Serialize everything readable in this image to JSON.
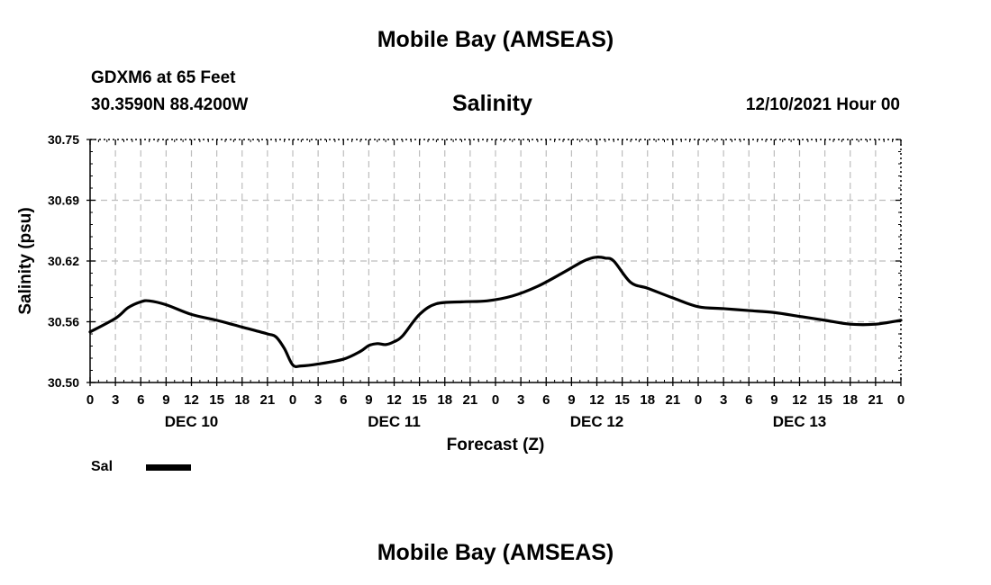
{
  "header": {
    "title": "Mobile Bay (AMSEAS)",
    "station": "GDXM6 at 65 Feet",
    "coords": "30.3590N  88.4200W",
    "variable": "Salinity",
    "datetime": "12/10/2021 Hour 00"
  },
  "footer": {
    "title": "Mobile Bay (AMSEAS)"
  },
  "legend": {
    "label": "Sal",
    "color": "#000000"
  },
  "chart_data": {
    "type": "line",
    "title": "Salinity",
    "xlabel": "Forecast (Z)",
    "ylabel": "Salinity (psu)",
    "xlim": [
      0,
      96
    ],
    "ylim": [
      30.5,
      30.75
    ],
    "yticks": [
      "30.50",
      "30.56",
      "30.62",
      "30.69",
      "30.75"
    ],
    "ytick_values": [
      30.5,
      30.5625,
      30.625,
      30.6875,
      30.75
    ],
    "xticks": [
      "0",
      "3",
      "6",
      "9",
      "12",
      "15",
      "18",
      "21",
      "0",
      "3",
      "6",
      "9",
      "12",
      "15",
      "18",
      "21",
      "0",
      "3",
      "6",
      "9",
      "12",
      "15",
      "18",
      "21",
      "0",
      "3",
      "6",
      "9",
      "12",
      "15",
      "18",
      "21",
      "0"
    ],
    "day_labels": [
      {
        "label": "DEC 10",
        "hour": 12
      },
      {
        "label": "DEC 11",
        "hour": 36
      },
      {
        "label": "DEC 12",
        "hour": 60
      },
      {
        "label": "DEC 13",
        "hour": 84
      }
    ],
    "grid": true,
    "series": [
      {
        "name": "Sal",
        "color": "#000000",
        "x": [
          0,
          3,
          4.5,
          6,
          7,
          9,
          12,
          15,
          18,
          21,
          22,
          23,
          24,
          25,
          27,
          30,
          32,
          33,
          34,
          35,
          36,
          37,
          39,
          41,
          44,
          47,
          50,
          53,
          56,
          58,
          59,
          60,
          61,
          62,
          64,
          66,
          69,
          72,
          75,
          78,
          81,
          84,
          87,
          90,
          93,
          96
        ],
        "y": [
          30.552,
          30.566,
          30.577,
          30.583,
          30.584,
          30.58,
          30.57,
          30.564,
          30.557,
          30.55,
          30.547,
          30.535,
          30.518,
          30.517,
          30.519,
          30.524,
          30.532,
          30.538,
          30.54,
          30.539,
          30.542,
          30.548,
          30.57,
          30.581,
          30.583,
          30.584,
          30.589,
          30.599,
          30.613,
          30.623,
          30.627,
          30.629,
          30.628,
          30.625,
          30.603,
          30.597,
          30.587,
          30.578,
          30.576,
          30.574,
          30.572,
          30.568,
          30.564,
          30.56,
          30.56,
          30.564
        ]
      }
    ]
  }
}
